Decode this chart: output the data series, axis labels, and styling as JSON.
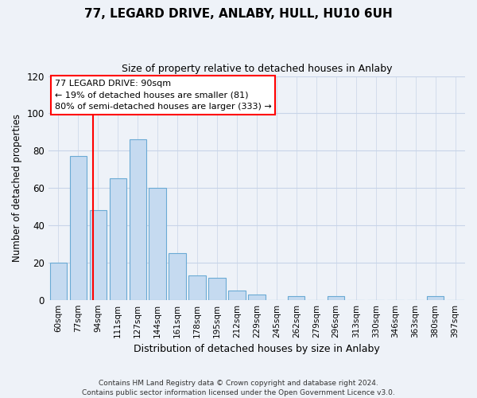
{
  "title": "77, LEGARD DRIVE, ANLABY, HULL, HU10 6UH",
  "subtitle": "Size of property relative to detached houses in Anlaby",
  "xlabel": "Distribution of detached houses by size in Anlaby",
  "ylabel": "Number of detached properties",
  "bar_color": "#c5daf0",
  "bar_edge_color": "#6aaad4",
  "categories": [
    "60sqm",
    "77sqm",
    "94sqm",
    "111sqm",
    "127sqm",
    "144sqm",
    "161sqm",
    "178sqm",
    "195sqm",
    "212sqm",
    "229sqm",
    "245sqm",
    "262sqm",
    "279sqm",
    "296sqm",
    "313sqm",
    "330sqm",
    "346sqm",
    "363sqm",
    "380sqm",
    "397sqm"
  ],
  "values": [
    20,
    77,
    48,
    65,
    86,
    60,
    25,
    13,
    12,
    5,
    3,
    0,
    2,
    0,
    2,
    0,
    0,
    0,
    0,
    2,
    0
  ],
  "red_line_x": 1.76,
  "ylim": [
    0,
    120
  ],
  "yticks": [
    0,
    20,
    40,
    60,
    80,
    100,
    120
  ],
  "annotation_title": "77 LEGARD DRIVE: 90sqm",
  "annotation_line1": "← 19% of detached houses are smaller (81)",
  "annotation_line2": "80% of semi-detached houses are larger (333) →",
  "footer_line1": "Contains HM Land Registry data © Crown copyright and database right 2024.",
  "footer_line2": "Contains public sector information licensed under the Open Government Licence v3.0.",
  "bg_color": "#eef2f8",
  "grid_color": "#c8d4e8"
}
